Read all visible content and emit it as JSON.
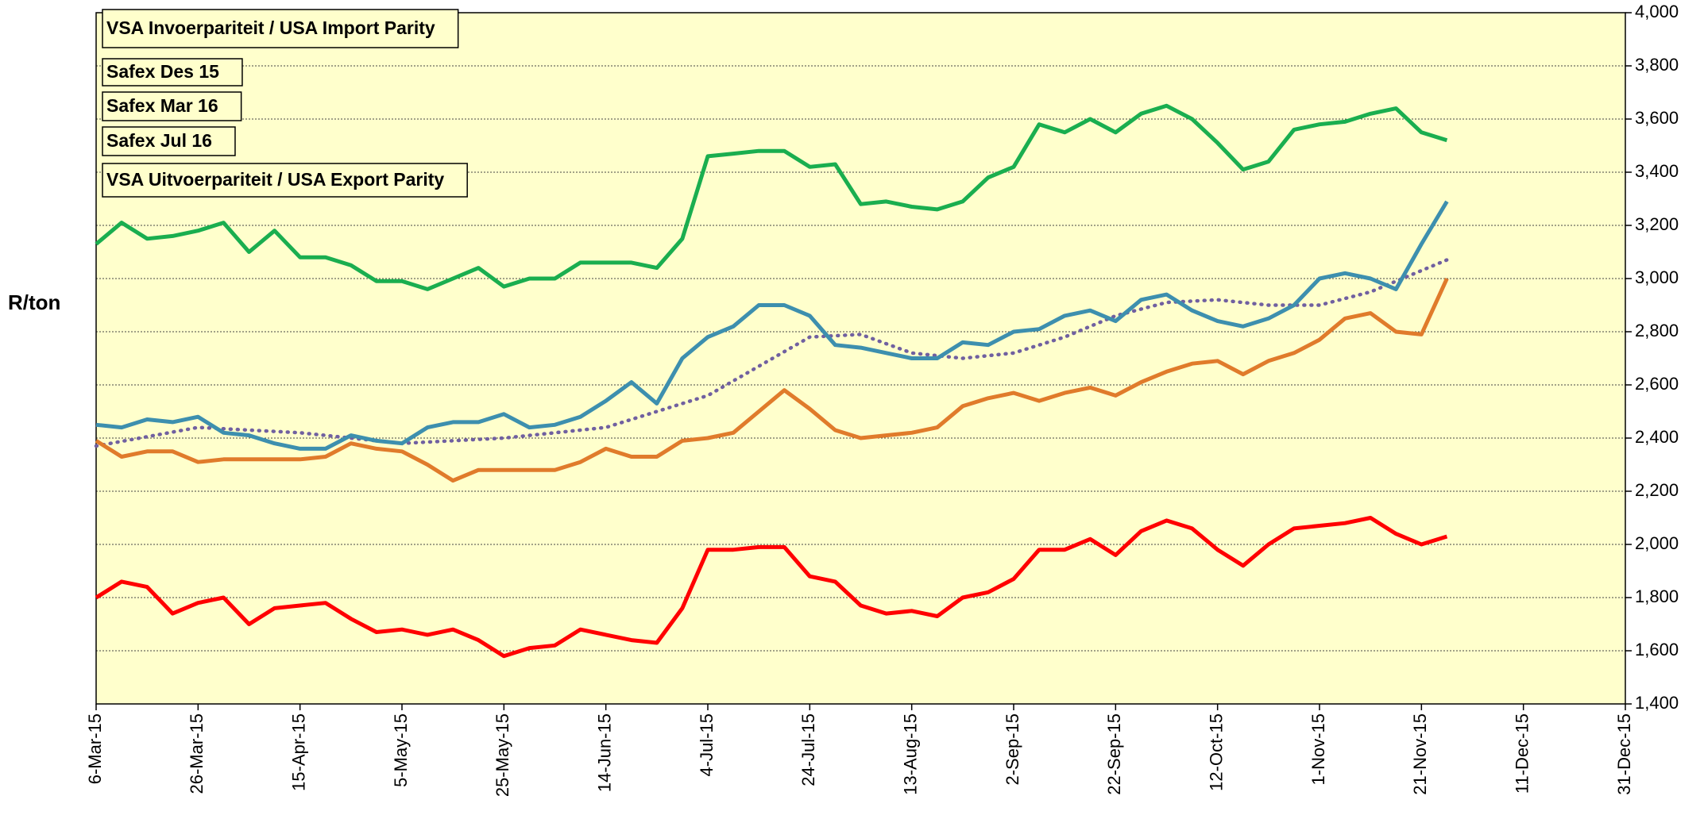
{
  "chart_data": {
    "type": "line",
    "y_label": "R/ton",
    "x": [
      "2015-03-06",
      "2015-03-11",
      "2015-03-16",
      "2015-03-21",
      "2015-03-26",
      "2015-03-31",
      "2015-04-05",
      "2015-04-10",
      "2015-04-15",
      "2015-04-20",
      "2015-04-25",
      "2015-04-30",
      "2015-05-05",
      "2015-05-10",
      "2015-05-15",
      "2015-05-20",
      "2015-05-25",
      "2015-05-30",
      "2015-06-04",
      "2015-06-09",
      "2015-06-14",
      "2015-06-19",
      "2015-06-24",
      "2015-06-29",
      "2015-07-04",
      "2015-07-09",
      "2015-07-14",
      "2015-07-19",
      "2015-07-24",
      "2015-07-29",
      "2015-08-03",
      "2015-08-08",
      "2015-08-13",
      "2015-08-18",
      "2015-08-23",
      "2015-08-28",
      "2015-09-02",
      "2015-09-07",
      "2015-09-12",
      "2015-09-17",
      "2015-09-22",
      "2015-09-27",
      "2015-10-02",
      "2015-10-07",
      "2015-10-12",
      "2015-10-17",
      "2015-10-22",
      "2015-10-27",
      "2015-11-01",
      "2015-11-06",
      "2015-11-11",
      "2015-11-16",
      "2015-11-21",
      "2015-11-26"
    ],
    "series": [
      {
        "name": "VSA Invoerpariteit / USA Import Parity",
        "color": "#1aae4f",
        "values": [
          3130,
          3210,
          3150,
          3160,
          3180,
          3210,
          3100,
          3180,
          3080,
          3080,
          3050,
          2990,
          2990,
          2960,
          3000,
          3040,
          2970,
          3000,
          3000,
          3060,
          3060,
          3060,
          3040,
          3150,
          3460,
          3470,
          3480,
          3480,
          3420,
          3430,
          3280,
          3290,
          3270,
          3260,
          3290,
          3380,
          3420,
          3580,
          3550,
          3600,
          3550,
          3620,
          3650,
          3600,
          3510,
          3410,
          3440,
          3560,
          3580,
          3590,
          3620,
          3640,
          3550,
          3520
        ]
      },
      {
        "name": "Safex Des 15",
        "color": "#000000"
      },
      {
        "name": "Safex Mar 16",
        "color": "#3d8fae",
        "values": [
          2450,
          2440,
          2470,
          2460,
          2480,
          2420,
          2410,
          2380,
          2360,
          2360,
          2410,
          2390,
          2380,
          2440,
          2460,
          2460,
          2490,
          2440,
          2450,
          2480,
          2540,
          2610,
          2530,
          2700,
          2780,
          2820,
          2900,
          2900,
          2860,
          2750,
          2740,
          2720,
          2700,
          2700,
          2760,
          2750,
          2800,
          2810,
          2860,
          2880,
          2840,
          2920,
          2940,
          2880,
          2840,
          2820,
          2850,
          2900,
          3000,
          3020,
          3000,
          2960,
          3130,
          3290
        ]
      },
      {
        "name": "Safex Jul 16",
        "color": "#e07b2b",
        "values": [
          2390,
          2330,
          2350,
          2350,
          2310,
          2320,
          2320,
          2320,
          2320,
          2330,
          2380,
          2360,
          2350,
          2300,
          2240,
          2280,
          2280,
          2280,
          2280,
          2310,
          2360,
          2330,
          2330,
          2390,
          2400,
          2420,
          2500,
          2580,
          2510,
          2430,
          2400,
          2410,
          2420,
          2440,
          2520,
          2550,
          2570,
          2540,
          2570,
          2590,
          2560,
          2610,
          2650,
          2680,
          2690,
          2640,
          2690,
          2720,
          2770,
          2850,
          2870,
          2800,
          2790,
          3000
        ]
      },
      {
        "name": "VSA Uitvoerpariteit / USA Export Parity",
        "color": "#ff0000",
        "values": [
          1800,
          1860,
          1840,
          1740,
          1780,
          1800,
          1700,
          1760,
          1770,
          1780,
          1720,
          1670,
          1680,
          1660,
          1680,
          1640,
          1580,
          1610,
          1620,
          1680,
          1660,
          1640,
          1630,
          1760,
          1980,
          1980,
          1990,
          1990,
          1880,
          1860,
          1770,
          1740,
          1750,
          1730,
          1800,
          1820,
          1870,
          1980,
          1980,
          2020,
          1960,
          2050,
          2090,
          2060,
          1980,
          1920,
          2000,
          2060,
          2070,
          2080,
          2100,
          2040,
          2000,
          2030
        ]
      }
    ],
    "trend": {
      "color": "#7060a0",
      "x": [
        "2015-03-06",
        "2015-03-26",
        "2015-04-15",
        "2015-05-05",
        "2015-05-25",
        "2015-06-14",
        "2015-07-04",
        "2015-07-24",
        "2015-08-03",
        "2015-08-13",
        "2015-08-23",
        "2015-09-02",
        "2015-09-12",
        "2015-09-22",
        "2015-10-02",
        "2015-10-12",
        "2015-10-22",
        "2015-11-01",
        "2015-11-11",
        "2015-11-26"
      ],
      "values": [
        2370,
        2440,
        2420,
        2380,
        2400,
        2440,
        2560,
        2780,
        2790,
        2720,
        2700,
        2720,
        2780,
        2860,
        2910,
        2920,
        2900,
        2900,
        2950,
        3070
      ]
    },
    "xlim": [
      "2015-03-06",
      "2015-12-31"
    ],
    "xticks": [
      {
        "value": "2015-03-06",
        "label": "6-Mar-15"
      },
      {
        "value": "2015-03-26",
        "label": "26-Mar-15"
      },
      {
        "value": "2015-04-15",
        "label": "15-Apr-15"
      },
      {
        "value": "2015-05-05",
        "label": "5-May-15"
      },
      {
        "value": "2015-05-25",
        "label": "25-May-15"
      },
      {
        "value": "2015-06-14",
        "label": "14-Jun-15"
      },
      {
        "value": "2015-07-04",
        "label": "4-Jul-15"
      },
      {
        "value": "2015-07-24",
        "label": "24-Jul-15"
      },
      {
        "value": "2015-08-13",
        "label": "13-Aug-15"
      },
      {
        "value": "2015-09-02",
        "label": "2-Sep-15"
      },
      {
        "value": "2015-09-22",
        "label": "22-Sep-15"
      },
      {
        "value": "2015-10-12",
        "label": "12-Oct-15"
      },
      {
        "value": "2015-11-01",
        "label": "1-Nov-15"
      },
      {
        "value": "2015-11-21",
        "label": "21-Nov-15"
      },
      {
        "value": "2015-12-11",
        "label": "11-Dec-15"
      },
      {
        "value": "2015-12-31",
        "label": "31-Dec-15"
      }
    ],
    "ylim": [
      1400,
      4000
    ],
    "yticks": [
      {
        "value": 1400,
        "label": "1,400"
      },
      {
        "value": 1600,
        "label": "1,600"
      },
      {
        "value": 1800,
        "label": "1,800"
      },
      {
        "value": 2000,
        "label": "2,000"
      },
      {
        "value": 2200,
        "label": "2,200"
      },
      {
        "value": 2400,
        "label": "2,400"
      },
      {
        "value": 2600,
        "label": "2,600"
      },
      {
        "value": 2800,
        "label": "2,800"
      },
      {
        "value": 3000,
        "label": "3,000"
      },
      {
        "value": 3200,
        "label": "3,200"
      },
      {
        "value": 3400,
        "label": "3,400"
      },
      {
        "value": 3600,
        "label": "3,600"
      },
      {
        "value": 3800,
        "label": "3,800"
      },
      {
        "value": 4000,
        "label": "4,000"
      }
    ],
    "grid": true,
    "legend": "upper-left",
    "background": "#ffffcc"
  }
}
